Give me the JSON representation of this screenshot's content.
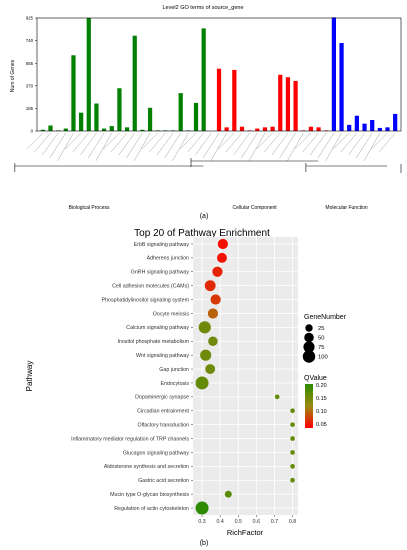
{
  "chart_data": [
    {
      "type": "bar",
      "title": "Level2 GO terms of source_gene",
      "ylabel": "Num of Genes",
      "yticks": [
        0,
        185,
        370,
        555,
        740,
        925
      ],
      "ylim": [
        0,
        925
      ],
      "groups": [
        {
          "name": "Biological Process",
          "color": "#008000",
          "values": [
            10,
            45,
            5,
            20,
            620,
            150,
            925,
            225,
            20,
            40,
            350,
            30,
            780,
            10,
            190,
            5,
            5,
            5,
            310,
            5,
            230,
            840,
            0
          ]
        },
        {
          "name": "Cellular Component",
          "color": "#ff0000",
          "values": [
            510,
            30,
            500,
            35,
            5,
            20,
            30,
            35,
            460,
            440,
            410,
            5,
            35,
            30,
            5
          ]
        },
        {
          "name": "Molecular Function",
          "color": "#0000ff",
          "values": [
            930,
            720,
            50,
            125,
            60,
            90,
            25,
            30,
            140
          ]
        }
      ],
      "xlabels": [
        "Biological Process",
        "Cellular Component",
        "Molecular Function"
      ]
    },
    {
      "type": "scatter",
      "title": "Top 20 of Pathway Enrichment",
      "xlabel": "RichFactor",
      "ylabel": "Pathway",
      "xlim": [
        0.25,
        0.83
      ],
      "xticks": [
        0.3,
        0.4,
        0.5,
        0.6,
        0.7,
        0.8
      ],
      "xtick_labels": [
        "0.3",
        "0.4",
        "0.5",
        "0.6",
        "0.7",
        "0.8"
      ],
      "pathways": [
        {
          "name": "ErbB signaling pathway",
          "rich": 0.415,
          "genes": 60,
          "q": 0.01
        },
        {
          "name": "Adherens junction",
          "rich": 0.41,
          "genes": 55,
          "q": 0.012
        },
        {
          "name": "GnRH signaling pathway",
          "rich": 0.385,
          "genes": 60,
          "q": 0.025
        },
        {
          "name": "Cell adhesion molecules (CAMs)",
          "rich": 0.345,
          "genes": 70,
          "q": 0.03
        },
        {
          "name": "Phosphatidylinositol signaling system",
          "rich": 0.375,
          "genes": 60,
          "q": 0.04
        },
        {
          "name": "Oocyte meiosis",
          "rich": 0.36,
          "genes": 60,
          "q": 0.07
        },
        {
          "name": "Calcium signaling pathway",
          "rich": 0.315,
          "genes": 95,
          "q": 0.14
        },
        {
          "name": "Inositol phosphate metabolism",
          "rich": 0.36,
          "genes": 50,
          "q": 0.14
        },
        {
          "name": "Wnt signaling pathway",
          "rich": 0.32,
          "genes": 75,
          "q": 0.14
        },
        {
          "name": "Gap junction",
          "rich": 0.345,
          "genes": 55,
          "q": 0.14
        },
        {
          "name": "Endocytosis",
          "rich": 0.3,
          "genes": 110,
          "q": 0.15
        },
        {
          "name": "Dopaminergic synapse",
          "rich": 0.715,
          "genes": 5,
          "q": 0.15
        },
        {
          "name": "Circadian entrainment",
          "rich": 0.8,
          "genes": 5,
          "q": 0.15
        },
        {
          "name": "Olfactory transduction",
          "rich": 0.8,
          "genes": 5,
          "q": 0.15
        },
        {
          "name": "Inflammatory mediator regulation of TRP channels",
          "rich": 0.8,
          "genes": 5,
          "q": 0.15
        },
        {
          "name": "Glucagon signaling pathway",
          "rich": 0.8,
          "genes": 5,
          "q": 0.15
        },
        {
          "name": "Aldosterone synthesis and secretion",
          "rich": 0.8,
          "genes": 5,
          "q": 0.15
        },
        {
          "name": "Gastric acid secretion",
          "rich": 0.8,
          "genes": 5,
          "q": 0.15
        },
        {
          "name": "Mucin type O-glycan biosynthesis",
          "rich": 0.445,
          "genes": 20,
          "q": 0.16
        },
        {
          "name": "Regulation of actin cytoskeleton",
          "rich": 0.3,
          "genes": 110,
          "q": 0.2
        }
      ],
      "size_legend": {
        "title": "GeneNumber",
        "values": [
          "25",
          "50",
          "75",
          "100"
        ]
      },
      "color_legend": {
        "title": "QValue",
        "ticks": [
          "0.20",
          "0.15",
          "0.10",
          "0.05"
        ],
        "high_color": "#2e8b00",
        "low_color": "#ff0000"
      }
    }
  ],
  "panel_labels": {
    "a": "(a)",
    "b": "(b)"
  }
}
